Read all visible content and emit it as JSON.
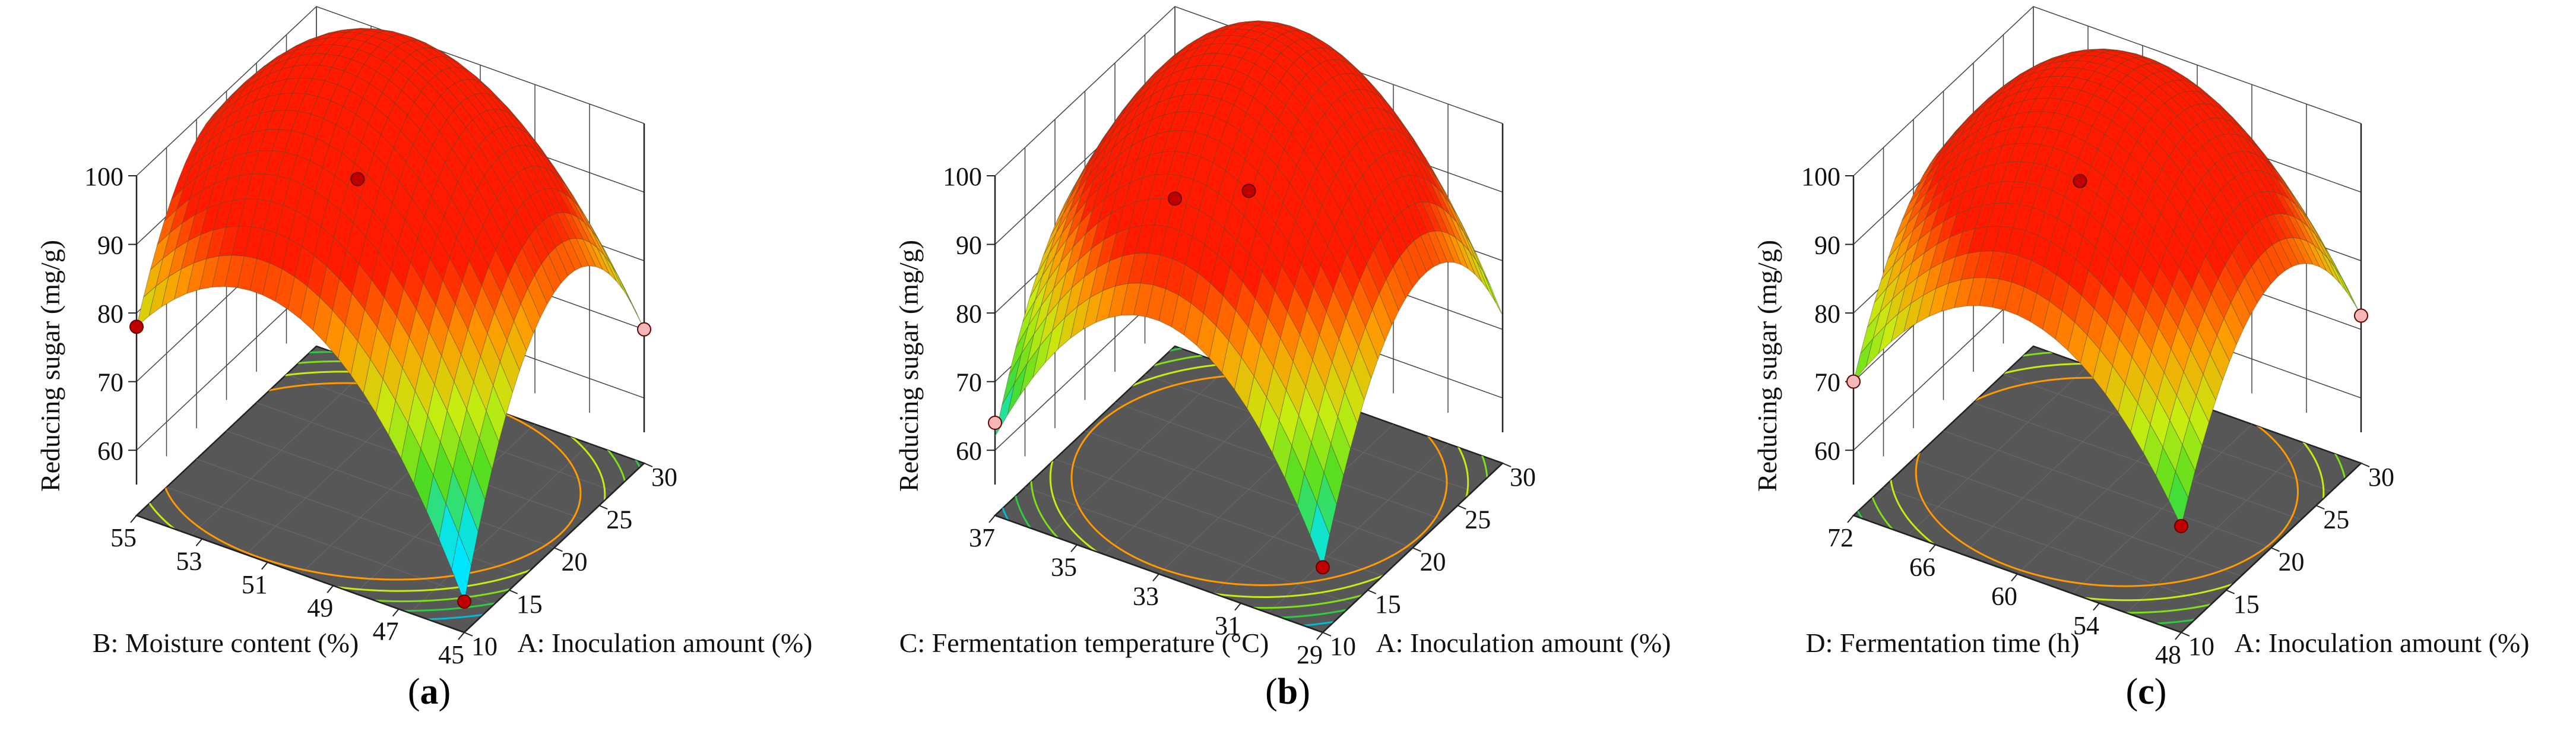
{
  "panels": [
    {
      "letter": "a",
      "panel_label_open": "(",
      "panel_label_close": ")"
    },
    {
      "letter": "b",
      "panel_label_open": "(",
      "panel_label_close": ")"
    },
    {
      "letter": "c",
      "panel_label_open": "(",
      "panel_label_close": ")"
    }
  ],
  "chart_data": [
    {
      "type": "surface3d",
      "panel": "a",
      "zlabel": "Reducing sugar (mg/g)",
      "xlabel": "A: Inoculation amount (%)",
      "ylabel": "B: Moisture content (%)",
      "z_ticks": [
        "60",
        "70",
        "80",
        "90",
        "100"
      ],
      "x_ticks": [
        "10",
        "15",
        "20",
        "25",
        "30"
      ],
      "y_ticks": [
        "45",
        "47",
        "49",
        "51",
        "53",
        "55"
      ],
      "zlim": [
        55,
        100
      ],
      "xlim": [
        10,
        30
      ],
      "ylim": [
        45,
        55
      ],
      "surface": {
        "peak": 94,
        "x_optimum": 20,
        "y_optimum": 51,
        "corner_values": {
          "x10_y45": 55,
          "x30_y45": 70,
          "x10_y55": 78,
          "x30_y55": 68
        }
      },
      "design_points": [
        {
          "x": 20,
          "y": 51,
          "z": 94,
          "above_surface": true
        },
        {
          "x": 10,
          "y": 55,
          "z": 78,
          "above_surface": true
        },
        {
          "x": 30,
          "y": 45,
          "z": 70,
          "above_surface": false
        },
        {
          "x": 10,
          "y": 45,
          "z": 55,
          "above_surface": true
        }
      ],
      "contour_floor": "visible",
      "colormap": [
        "#00e5ff",
        "#4cdd22",
        "#c7ec10",
        "#ff9a00",
        "#ff1a00"
      ]
    },
    {
      "type": "surface3d",
      "panel": "b",
      "zlabel": "Reducing sugar (mg/g)",
      "xlabel": "A: Inoculation amount (%)",
      "ylabel": "C: Fermentation temperature (°C)",
      "z_ticks": [
        "60",
        "70",
        "80",
        "90",
        "100"
      ],
      "x_ticks": [
        "10",
        "15",
        "20",
        "25",
        "30"
      ],
      "y_ticks": [
        "29",
        "31",
        "33",
        "35",
        "37"
      ],
      "zlim": [
        55,
        100
      ],
      "xlim": [
        10,
        30
      ],
      "ylim": [
        29,
        37
      ],
      "surface": {
        "peak": 94,
        "x_optimum": 20,
        "y_optimum": 33,
        "corner_values": {
          "x10_y29": 60,
          "x30_y29": 72,
          "x10_y37": 62,
          "x30_y37": 70
        }
      },
      "design_points": [
        {
          "x": 20,
          "y": 33,
          "z": 94,
          "above_surface": true
        },
        {
          "x": 30,
          "y": 37,
          "z": 72,
          "above_surface": true
        },
        {
          "x": 10,
          "y": 37,
          "z": 64,
          "above_surface": false
        },
        {
          "x": 10,
          "y": 29,
          "z": 60,
          "above_surface": true
        }
      ],
      "contour_floor": "visible",
      "colormap": [
        "#00e5ff",
        "#4cdd22",
        "#c7ec10",
        "#ff9a00",
        "#ff1a00"
      ]
    },
    {
      "type": "surface3d",
      "panel": "c",
      "zlabel": "Reducing sugar (mg/g)",
      "xlabel": "A: Inoculation amount (%)",
      "ylabel": "D: Fermentation time (h)",
      "z_ticks": [
        "60",
        "70",
        "80",
        "90",
        "100"
      ],
      "x_ticks": [
        "10",
        "15",
        "20",
        "25",
        "30"
      ],
      "y_ticks": [
        "48",
        "54",
        "60",
        "66",
        "72"
      ],
      "zlim": [
        55,
        100
      ],
      "xlim": [
        10,
        30
      ],
      "ylim": [
        48,
        72
      ],
      "surface": {
        "peak": 94,
        "x_optimum": 20,
        "y_optimum": 62,
        "corner_values": {
          "x10_y48": 66,
          "x30_y48": 72,
          "x10_y72": 70,
          "x30_y72": 74
        }
      },
      "design_points": [
        {
          "x": 20,
          "y": 62,
          "z": 94,
          "above_surface": true
        },
        {
          "x": 30,
          "y": 48,
          "z": 72,
          "above_surface": false
        },
        {
          "x": 10,
          "y": 72,
          "z": 70,
          "above_surface": false
        },
        {
          "x": 10,
          "y": 48,
          "z": 66,
          "above_surface": true
        }
      ],
      "contour_floor": "visible",
      "colormap": [
        "#00e5ff",
        "#4cdd22",
        "#c7ec10",
        "#ff9a00",
        "#ff1a00"
      ]
    }
  ]
}
